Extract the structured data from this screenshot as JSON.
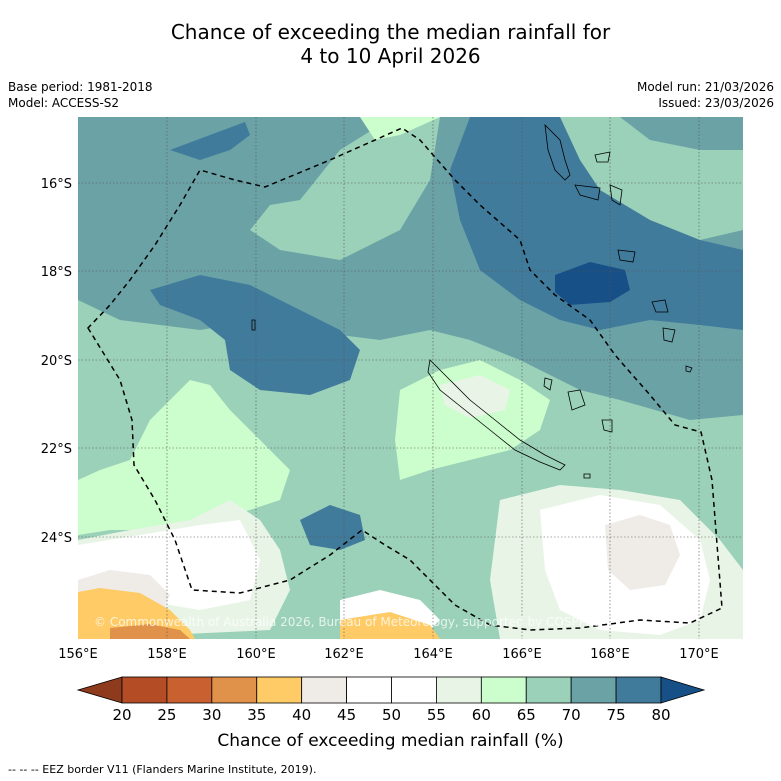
{
  "title_line1": "Chance of exceeding the median rainfall for",
  "title_line2": "4 to 10 April 2026",
  "base_period": "Base period: 1981-2018",
  "model": "Model: ACCESS-S2",
  "model_run": "Model run: 21/03/2026",
  "issued": "Issued: 23/03/2026",
  "copyright": "© Commonwealth of Australia 2026, Bureau of Meteorology, supported by COSPPac",
  "lat_labels": [
    "16°S",
    "18°S",
    "20°S",
    "22°S",
    "24°S"
  ],
  "lon_labels": [
    "156°E",
    "158°E",
    "160°E",
    "162°E",
    "164°E",
    "166°E",
    "168°E",
    "170°E"
  ],
  "colorbar": {
    "label": "Chance of exceeding median rainfall (%)",
    "ticks": [
      "20",
      "25",
      "30",
      "35",
      "40",
      "45",
      "50",
      "55",
      "60",
      "65",
      "70",
      "75",
      "80"
    ],
    "colors": [
      "#8e3a1c",
      "#b44c25",
      "#c8612f",
      "#e0914a",
      "#fecb66",
      "#efebe6",
      "#ffffff",
      "#ffffff",
      "#e8f5e6",
      "#ccfdcc",
      "#9ad1b8",
      "#6aa2a6",
      "#417b9c",
      "#174f87"
    ]
  },
  "footnote": "-- -- -- EEZ border V11 (Flanders Marine Institute, 2019).",
  "icons": {
    "eez": "dashed-line-icon",
    "coastline": "island-outline-icon"
  }
}
